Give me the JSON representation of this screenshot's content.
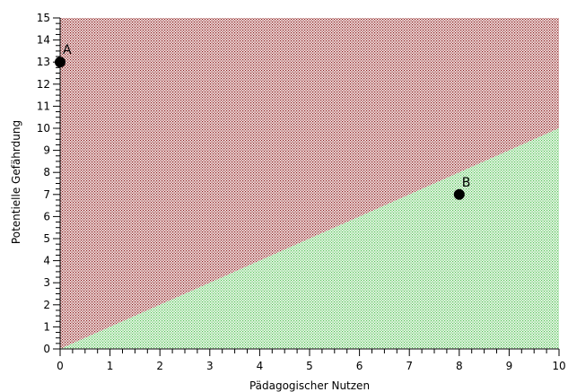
{
  "chart_data": {
    "type": "scatter",
    "title": "",
    "xlabel": "Pädagogischer Nutzen",
    "ylabel": "Potentielle Gefährdung",
    "xlim": [
      0,
      10
    ],
    "ylim": [
      0,
      15
    ],
    "x_ticks": [
      "0",
      "1",
      "2",
      "3",
      "4",
      "5",
      "6",
      "7",
      "8",
      "9",
      "10"
    ],
    "y_ticks": [
      "0",
      "1",
      "2",
      "3",
      "4",
      "5",
      "6",
      "7",
      "8",
      "9",
      "10",
      "11",
      "12",
      "13",
      "14",
      "15"
    ],
    "boundary_line": {
      "x": [
        0,
        10
      ],
      "y": [
        0,
        10
      ]
    },
    "regions": [
      {
        "position": "above boundary",
        "color": "#8b1a1a"
      },
      {
        "position": "below boundary",
        "color": "#55c455"
      }
    ],
    "points": [
      {
        "label": "A",
        "x": 0,
        "y": 13
      },
      {
        "label": "B",
        "x": 8,
        "y": 7
      }
    ],
    "grid": false,
    "legend": "none"
  }
}
